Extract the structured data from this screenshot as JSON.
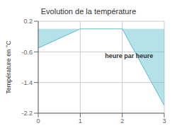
{
  "chart_data": {
    "type": "area",
    "title": "Evolution de la température",
    "xlabel": "heure par heure",
    "ylabel": "Température en °C",
    "x": [
      0,
      1,
      2,
      3
    ],
    "values": [
      -0.5,
      0.0,
      0.0,
      -2.0
    ],
    "color": "#5bbccc",
    "xlim": [
      0,
      3
    ],
    "ylim": [
      -2.2,
      0.2
    ],
    "xticks": [
      0,
      1,
      2,
      3
    ],
    "yticks": [
      0.2,
      -0.6,
      -1.4,
      -2.2
    ],
    "grid": true
  }
}
